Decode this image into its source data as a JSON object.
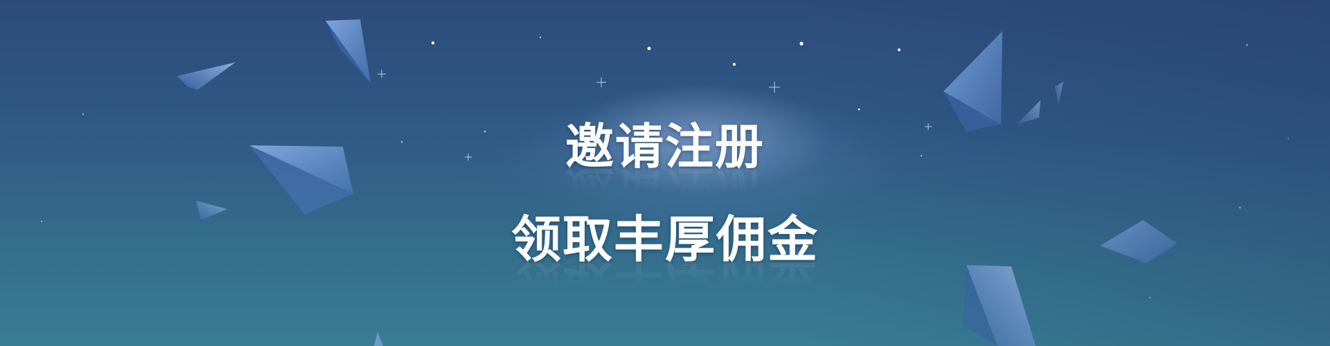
{
  "banner": {
    "title_line1": "邀请注册",
    "title_line2": "领取丰厚佣金"
  },
  "colors": {
    "background_top": "#2d4b7a",
    "background_bottom": "#3a7d93",
    "text": "#ffffff",
    "decor_shape": "#6f9ad6"
  },
  "icons": [
    "paper-plane-shard-icon",
    "sparkle-star-icon"
  ]
}
